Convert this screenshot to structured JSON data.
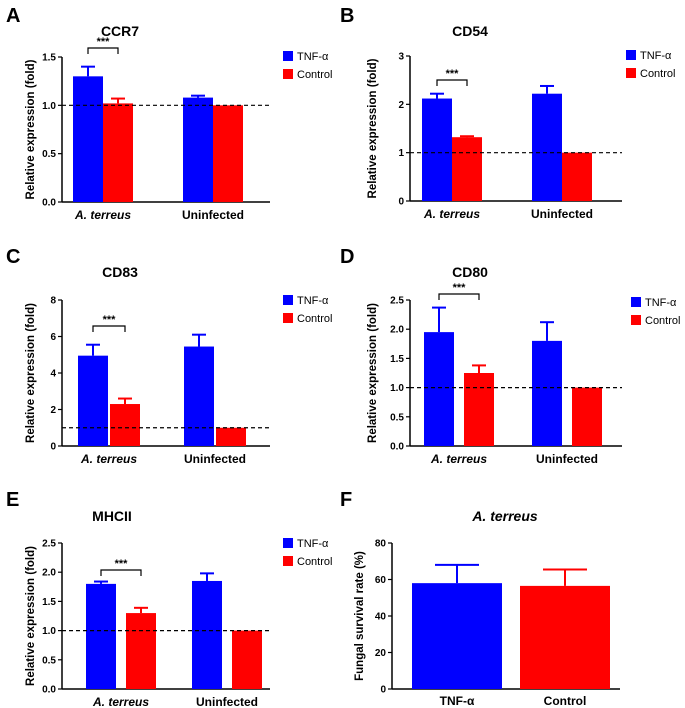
{
  "chart_data": [
    {
      "panel": "A",
      "type": "bar",
      "title": "CCR7",
      "ylabel": "Relative expression (fold)",
      "ylim": [
        0,
        1.5
      ],
      "yticks": [
        "0.0",
        "0.5",
        "1.0",
        "1.5"
      ],
      "categories": [
        "A. terreus",
        "Uninfected"
      ],
      "series": [
        {
          "name": "TNF-α",
          "color": "#0000ff",
          "values": [
            1.3,
            1.08
          ],
          "errors": [
            0.1,
            0.02
          ]
        },
        {
          "name": "Control",
          "color": "#ff0000",
          "values": [
            1.02,
            1.0
          ],
          "errors": [
            0.05,
            0.0
          ]
        }
      ],
      "reference_line": 1.0,
      "significance": "***"
    },
    {
      "panel": "B",
      "type": "bar",
      "title": "CD54",
      "ylabel": "Relative expression (fold)",
      "ylim": [
        0,
        3
      ],
      "yticks": [
        "0",
        "1",
        "2",
        "3"
      ],
      "categories": [
        "A. terreus",
        "Uninfected"
      ],
      "series": [
        {
          "name": "TNF-α",
          "color": "#0000ff",
          "values": [
            2.12,
            2.22
          ],
          "errors": [
            0.1,
            0.16
          ]
        },
        {
          "name": "Control",
          "color": "#ff0000",
          "values": [
            1.32,
            1.0
          ],
          "errors": [
            0.02,
            0.0
          ]
        }
      ],
      "reference_line": 1.0,
      "significance": "***"
    },
    {
      "panel": "C",
      "type": "bar",
      "title": "CD83",
      "ylabel": "Relative expression (fold)",
      "ylim": [
        0,
        8
      ],
      "yticks": [
        "0",
        "2",
        "4",
        "6",
        "8"
      ],
      "categories": [
        "A. terreus",
        "Uninfected"
      ],
      "series": [
        {
          "name": "TNF-α",
          "color": "#0000ff",
          "values": [
            4.95,
            5.45
          ],
          "errors": [
            0.6,
            0.65
          ]
        },
        {
          "name": "Control",
          "color": "#ff0000",
          "values": [
            2.3,
            1.0
          ],
          "errors": [
            0.3,
            0.0
          ]
        }
      ],
      "reference_line": 1.0,
      "significance": "***"
    },
    {
      "panel": "D",
      "type": "bar",
      "title": "CD80",
      "ylabel": "Relative expression (fold)",
      "ylim": [
        0,
        2.5
      ],
      "yticks": [
        "0.0",
        "0.5",
        "1.0",
        "1.5",
        "2.0",
        "2.5"
      ],
      "categories": [
        "A. terreus",
        "Uninfected"
      ],
      "series": [
        {
          "name": "TNF-α",
          "color": "#0000ff",
          "values": [
            1.95,
            1.8
          ],
          "errors": [
            0.42,
            0.32
          ]
        },
        {
          "name": "Control",
          "color": "#ff0000",
          "values": [
            1.25,
            1.0
          ],
          "errors": [
            0.13,
            0.0
          ]
        }
      ],
      "reference_line": 1.0,
      "significance": "***"
    },
    {
      "panel": "E",
      "type": "bar",
      "title": "MHCII",
      "ylabel": "Relative expression (fold)",
      "ylim": [
        0,
        2.5
      ],
      "yticks": [
        "0.0",
        "0.5",
        "1.0",
        "1.5",
        "2.0",
        "2.5"
      ],
      "categories": [
        "A. terreus",
        "Uninfected"
      ],
      "series": [
        {
          "name": "TNF-α",
          "color": "#0000ff",
          "values": [
            1.8,
            1.85
          ],
          "errors": [
            0.04,
            0.13
          ]
        },
        {
          "name": "Control",
          "color": "#ff0000",
          "values": [
            1.3,
            1.0
          ],
          "errors": [
            0.09,
            0.0
          ]
        }
      ],
      "reference_line": 1.0,
      "significance": "***"
    },
    {
      "panel": "F",
      "type": "bar",
      "title": "A. terreus",
      "ylabel": "Fungal survival rate (%)",
      "ylim": [
        0,
        80
      ],
      "yticks": [
        "0",
        "20",
        "40",
        "60",
        "80"
      ],
      "categories": [
        "TNF-α",
        "Control"
      ],
      "values": [
        58,
        56.5
      ],
      "errors": [
        10,
        9
      ],
      "colors": [
        "#0000ff",
        "#ff0000"
      ]
    }
  ]
}
